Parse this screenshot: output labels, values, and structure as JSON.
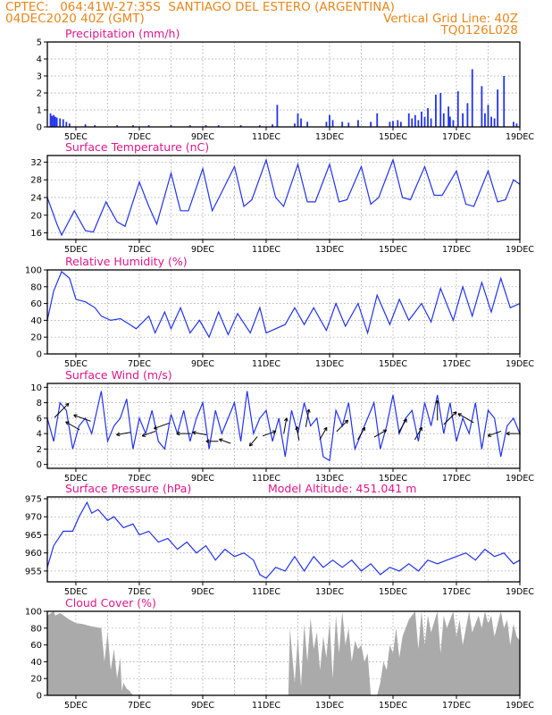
{
  "header": {
    "line1_left": "CPTEC:   064:41W-27:35S  SANTIAGO DEL ESTERO (ARGENTINA)",
    "line2_left": "04DEC2020 40Z (GMT)",
    "line2_right": "Vertical Grid Line: 40Z",
    "line3_right": "TQ0126L028"
  },
  "colors": {
    "line": "#2233ee",
    "bar": "#2233ee",
    "cloud": "#aaaaaa",
    "title": "#e0178a",
    "header": "#e8861a"
  },
  "x_axis": {
    "labels": [
      "5DEC",
      "7DEC",
      "9DEC",
      "11DEC",
      "13DEC",
      "15DEC",
      "17DEC",
      "19DEC"
    ],
    "label_days": [
      5,
      7,
      9,
      11,
      13,
      15,
      17,
      19
    ],
    "range_days": [
      4.1,
      19.0
    ]
  },
  "chart_data": [
    {
      "id": "precip",
      "type": "bar",
      "title": "Precipitation (mm/h)",
      "ylim": [
        0,
        5
      ],
      "yticks": [
        0,
        1,
        2,
        3,
        4,
        5
      ],
      "x": [
        4.2,
        4.25,
        4.3,
        4.35,
        4.4,
        4.5,
        4.6,
        4.7,
        4.8,
        5.3,
        5.6,
        6.3,
        6.8,
        7.3,
        8.0,
        8.6,
        9.1,
        9.5,
        10.2,
        10.8,
        11.2,
        11.35,
        11.9,
        12.0,
        12.1,
        12.3,
        12.9,
        13.0,
        13.1,
        13.4,
        13.6,
        13.9,
        14.3,
        14.5,
        14.9,
        15.0,
        15.15,
        15.25,
        15.5,
        15.6,
        15.7,
        15.8,
        15.9,
        16.0,
        16.1,
        16.2,
        16.35,
        16.5,
        16.6,
        16.75,
        16.8,
        16.9,
        17.05,
        17.2,
        17.35,
        17.5,
        17.8,
        17.9,
        18.0,
        18.1,
        18.2,
        18.3,
        18.5,
        18.8,
        18.9
      ],
      "values": [
        0.8,
        0.65,
        0.7,
        0.6,
        0.55,
        0.5,
        0.45,
        0.3,
        0.2,
        0.15,
        0.1,
        0.1,
        0.1,
        0.1,
        0.1,
        0.1,
        0.1,
        0.1,
        0.1,
        0.1,
        0.15,
        1.3,
        0.2,
        0.8,
        0.5,
        0.3,
        0.3,
        0.7,
        0.4,
        0.3,
        0.25,
        0.4,
        0.3,
        0.8,
        0.3,
        0.35,
        0.4,
        0.3,
        0.8,
        0.5,
        0.7,
        0.4,
        0.9,
        0.6,
        1.1,
        0.5,
        1.9,
        2.0,
        0.8,
        1.2,
        0.6,
        0.4,
        2.1,
        0.8,
        1.4,
        3.4,
        2.4,
        0.8,
        1.3,
        0.6,
        0.5,
        2.2,
        3.0,
        0.3,
        0.2
      ]
    },
    {
      "id": "temp",
      "type": "line",
      "title": "Surface Temperature (nC)",
      "ylim": [
        14.5,
        33.5
      ],
      "yticks": [
        16,
        20,
        24,
        28,
        32
      ],
      "x": [
        4.1,
        4.4,
        4.55,
        4.95,
        5.3,
        5.55,
        5.95,
        6.3,
        6.55,
        7.0,
        7.3,
        7.55,
        8.0,
        8.3,
        8.55,
        9.0,
        9.3,
        9.55,
        10.0,
        10.3,
        10.55,
        11.0,
        11.3,
        11.55,
        12.0,
        12.3,
        12.55,
        13.0,
        13.3,
        13.55,
        14.0,
        14.3,
        14.55,
        15.0,
        15.3,
        15.55,
        16.0,
        16.3,
        16.55,
        17.0,
        17.3,
        17.55,
        18.0,
        18.3,
        18.55,
        18.8,
        19.0
      ],
      "values": [
        24,
        18,
        15.5,
        21,
        16.5,
        16.2,
        23,
        18.5,
        17.5,
        27.5,
        22,
        18,
        29.5,
        21,
        21,
        30.5,
        21,
        24.5,
        31,
        22,
        23.5,
        32.5,
        24,
        22,
        31.5,
        23,
        23,
        31.5,
        23,
        23.5,
        31,
        22.5,
        24,
        32.5,
        24,
        23.5,
        31,
        24.5,
        24.5,
        30,
        22.5,
        22,
        30,
        23,
        23.5,
        28,
        27
      ]
    },
    {
      "id": "rh",
      "type": "line",
      "title": "Relative Humidity (%)",
      "ylim": [
        0,
        100
      ],
      "yticks": [
        0,
        20,
        40,
        60,
        80,
        100
      ],
      "x": [
        4.1,
        4.3,
        4.55,
        4.8,
        5.0,
        5.3,
        5.6,
        5.8,
        6.1,
        6.4,
        6.7,
        6.9,
        7.3,
        7.5,
        7.8,
        8.0,
        8.3,
        8.6,
        8.9,
        9.2,
        9.5,
        9.8,
        10.1,
        10.5,
        10.8,
        11.0,
        11.3,
        11.6,
        11.9,
        12.2,
        12.5,
        12.9,
        13.2,
        13.5,
        13.9,
        14.2,
        14.5,
        14.9,
        15.2,
        15.5,
        15.9,
        16.2,
        16.5,
        16.9,
        17.2,
        17.5,
        17.8,
        18.1,
        18.4,
        18.7,
        19.0
      ],
      "values": [
        40,
        75,
        98,
        90,
        65,
        62,
        55,
        45,
        40,
        42,
        35,
        30,
        45,
        25,
        50,
        30,
        55,
        25,
        40,
        20,
        50,
        23,
        48,
        25,
        55,
        25,
        30,
        35,
        55,
        35,
        55,
        28,
        60,
        33,
        60,
        25,
        70,
        35,
        65,
        40,
        60,
        38,
        78,
        40,
        80,
        45,
        85,
        50,
        90,
        55,
        60
      ]
    },
    {
      "id": "wind",
      "type": "line",
      "title": "Surface Wind (m/s)",
      "ylim": [
        -0.5,
        10.5
      ],
      "yticks": [
        0,
        2,
        4,
        6,
        8,
        10
      ],
      "x": [
        4.1,
        4.3,
        4.5,
        4.7,
        4.9,
        5.1,
        5.3,
        5.5,
        5.8,
        6.0,
        6.2,
        6.4,
        6.6,
        6.8,
        7.0,
        7.2,
        7.4,
        7.6,
        7.8,
        8.0,
        8.2,
        8.4,
        8.6,
        8.8,
        9.0,
        9.2,
        9.4,
        9.6,
        9.8,
        10.0,
        10.2,
        10.4,
        10.6,
        10.8,
        11.0,
        11.2,
        11.4,
        11.6,
        11.8,
        12.0,
        12.2,
        12.4,
        12.6,
        12.8,
        13.0,
        13.2,
        13.4,
        13.6,
        13.8,
        14.0,
        14.2,
        14.4,
        14.6,
        14.8,
        15.0,
        15.2,
        15.4,
        15.6,
        15.8,
        16.0,
        16.2,
        16.4,
        16.6,
        16.8,
        17.0,
        17.2,
        17.4,
        17.6,
        17.8,
        18.0,
        18.2,
        18.4,
        18.6,
        18.8,
        19.0
      ],
      "values": [
        6,
        3,
        8,
        7,
        2,
        5,
        6,
        4,
        9.5,
        3,
        5,
        6,
        8.5,
        2,
        6,
        4,
        7,
        3,
        2,
        6.5,
        4,
        7,
        3,
        6,
        8,
        2,
        7,
        4,
        6,
        8,
        3,
        9.5,
        4,
        6,
        7,
        3,
        6,
        1,
        7,
        4,
        8,
        5,
        6,
        1,
        0.5,
        7,
        5,
        8,
        2,
        4,
        6,
        8,
        2,
        5,
        9,
        4,
        6,
        7,
        3,
        8,
        5,
        9,
        4,
        8,
        3,
        6,
        4,
        8,
        2,
        7,
        6,
        1,
        5,
        6,
        4
      ]
    },
    {
      "id": "pres",
      "type": "line",
      "title": "Surface Pressure (hPa)",
      "annotation": "Model Altitude: 451.041 m",
      "ylim": [
        952,
        975.5
      ],
      "yticks": [
        955,
        960,
        965,
        970,
        975
      ],
      "x": [
        4.1,
        4.3,
        4.6,
        4.9,
        5.1,
        5.35,
        5.5,
        5.7,
        6.0,
        6.2,
        6.5,
        6.8,
        7.0,
        7.3,
        7.6,
        7.9,
        8.2,
        8.5,
        8.8,
        9.1,
        9.4,
        9.7,
        10.0,
        10.3,
        10.6,
        10.8,
        11.0,
        11.3,
        11.6,
        11.9,
        12.2,
        12.5,
        12.8,
        13.1,
        13.4,
        13.7,
        14.0,
        14.3,
        14.6,
        14.9,
        15.2,
        15.5,
        15.8,
        16.1,
        16.4,
        16.7,
        17.0,
        17.3,
        17.6,
        17.9,
        18.2,
        18.5,
        18.8,
        19.0
      ],
      "values": [
        956,
        962,
        966,
        966,
        970,
        974,
        971,
        972,
        969,
        970,
        967,
        968,
        965,
        966,
        963,
        964,
        961,
        963,
        960,
        962,
        958,
        961,
        959,
        960,
        958,
        954,
        953,
        956,
        955,
        959,
        955,
        959,
        956,
        958,
        956,
        958,
        955,
        957,
        954,
        956,
        955,
        957,
        955,
        958,
        957,
        958,
        959,
        960,
        958,
        961,
        959,
        960,
        957,
        958
      ]
    },
    {
      "id": "cloud",
      "type": "area",
      "title": "Cloud Cover (%)",
      "ylim": [
        0,
        100
      ],
      "yticks": [
        0,
        20,
        40,
        60,
        80,
        100
      ],
      "x": [
        4.1,
        4.3,
        4.35,
        4.5,
        4.8,
        5.0,
        5.2,
        5.5,
        5.8,
        5.9,
        6.0,
        6.1,
        6.2,
        6.3,
        6.4,
        6.45,
        6.5,
        6.6,
        6.7,
        6.8,
        6.9,
        7.0,
        7.5,
        8.0,
        9.0,
        10.0,
        10.5,
        11.0,
        11.5,
        11.7,
        11.75,
        11.9,
        12.0,
        12.1,
        12.2,
        12.3,
        12.4,
        12.5,
        12.6,
        12.7,
        12.8,
        12.9,
        13.0,
        13.1,
        13.2,
        13.3,
        13.4,
        13.5,
        13.6,
        13.7,
        13.8,
        13.9,
        14.0,
        14.1,
        14.2,
        14.3,
        14.5,
        14.6,
        14.7,
        14.8,
        14.9,
        15.0,
        15.1,
        15.2,
        15.3,
        15.5,
        15.7,
        15.8,
        15.9,
        16.0,
        16.1,
        16.2,
        16.4,
        16.5,
        16.6,
        16.7,
        16.9,
        17.0,
        17.1,
        17.2,
        17.4,
        17.5,
        17.7,
        17.8,
        17.9,
        18.0,
        18.1,
        18.2,
        18.4,
        18.5,
        18.6,
        18.7,
        18.8,
        18.9,
        19.0
      ],
      "values": [
        95,
        100,
        95,
        98,
        90,
        86,
        85,
        82,
        80,
        40,
        75,
        30,
        55,
        20,
        45,
        5,
        15,
        8,
        5,
        0,
        0,
        0,
        0,
        0,
        0,
        0,
        0,
        0,
        0,
        0,
        80,
        15,
        70,
        10,
        85,
        40,
        92,
        55,
        75,
        30,
        70,
        45,
        88,
        20,
        95,
        50,
        100,
        60,
        80,
        40,
        65,
        55,
        60,
        40,
        50,
        0,
        0,
        15,
        40,
        30,
        60,
        50,
        80,
        45,
        70,
        90,
        100,
        55,
        100,
        60,
        95,
        75,
        100,
        50,
        95,
        80,
        100,
        70,
        90,
        60,
        100,
        75,
        95,
        80,
        100,
        85,
        95,
        70,
        100,
        80,
        90,
        60,
        85,
        70,
        65
      ]
    }
  ],
  "wind_arrows": [
    {
      "day": 4.55,
      "speed": 7,
      "dir": 45
    },
    {
      "day": 4.9,
      "speed": 5,
      "dir": 150
    },
    {
      "day": 5.2,
      "speed": 6,
      "dir": 160
    },
    {
      "day": 6.5,
      "speed": 4,
      "dir": 190
    },
    {
      "day": 7.3,
      "speed": 4,
      "dir": 200
    },
    {
      "day": 7.7,
      "speed": 5,
      "dir": 200
    },
    {
      "day": 8.4,
      "speed": 4,
      "dir": 180
    },
    {
      "day": 8.9,
      "speed": 4,
      "dir": 170
    },
    {
      "day": 9.3,
      "speed": 3,
      "dir": 180
    },
    {
      "day": 9.7,
      "speed": 3,
      "dir": 160
    },
    {
      "day": 10.6,
      "speed": 3,
      "dir": 230
    },
    {
      "day": 11.1,
      "speed": 4,
      "dir": 20
    },
    {
      "day": 11.6,
      "speed": 5,
      "dir": 80
    },
    {
      "day": 12.0,
      "speed": 4,
      "dir": 100
    },
    {
      "day": 12.3,
      "speed": 6,
      "dir": 80
    },
    {
      "day": 12.8,
      "speed": 4,
      "dir": 60
    },
    {
      "day": 13.4,
      "speed": 5,
      "dir": 45
    },
    {
      "day": 14.0,
      "speed": 4,
      "dir": 60
    },
    {
      "day": 14.6,
      "speed": 4,
      "dir": 30
    },
    {
      "day": 15.3,
      "speed": 5,
      "dir": 60
    },
    {
      "day": 15.8,
      "speed": 4,
      "dir": 60
    },
    {
      "day": 16.4,
      "speed": 7,
      "dir": 90
    },
    {
      "day": 16.8,
      "speed": 6,
      "dir": 45
    },
    {
      "day": 17.3,
      "speed": 6,
      "dir": 150
    },
    {
      "day": 18.2,
      "speed": 4,
      "dir": 200
    },
    {
      "day": 18.8,
      "speed": 4,
      "dir": 180
    }
  ]
}
